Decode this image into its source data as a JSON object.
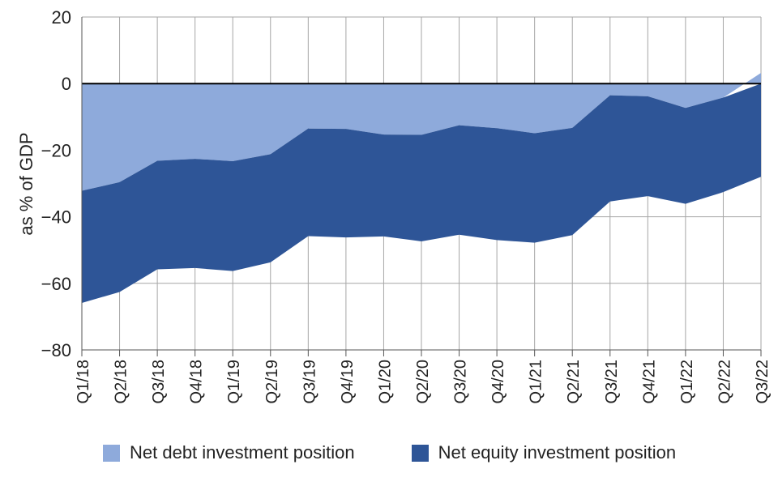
{
  "chart_data": {
    "type": "area",
    "ylabel": "as % of GDP",
    "xlabel": "",
    "ylim": [
      -80,
      20
    ],
    "yticks": [
      20,
      0,
      -20,
      -40,
      -60,
      -80
    ],
    "ytick_labels": [
      "20",
      "0",
      "−20",
      "−40",
      "−60",
      "−80"
    ],
    "grid": true,
    "legend_position": "bottom",
    "categories": [
      "Q1/18",
      "Q2/18",
      "Q3/18",
      "Q4/18",
      "Q1/19",
      "Q2/19",
      "Q3/19",
      "Q4/19",
      "Q1/20",
      "Q2/20",
      "Q3/20",
      "Q4/20",
      "Q1/21",
      "Q2/21",
      "Q3/21",
      "Q4/21",
      "Q1/22",
      "Q2/22",
      "Q3/22"
    ],
    "series": [
      {
        "name": "Net debt investment position",
        "color": "#8eaadb",
        "values": [
          -32.2,
          -29.6,
          -23.2,
          -22.6,
          -23.3,
          -21.2,
          -13.5,
          -13.6,
          -15.3,
          -15.4,
          -12.5,
          -13.4,
          -14.9,
          -13.3,
          -3.5,
          -3.8,
          -7.3,
          -4.2,
          3.2
        ]
      },
      {
        "name": "Net equity investment position",
        "color": "#2e5597",
        "values": [
          -33.7,
          -33.0,
          -32.6,
          -32.8,
          -33.0,
          -32.5,
          -32.3,
          -32.6,
          -30.6,
          -32.0,
          -32.9,
          -33.6,
          -32.9,
          -32.2,
          -31.9,
          -30.0,
          -28.8,
          -28.4,
          -28.0
        ]
      }
    ]
  }
}
